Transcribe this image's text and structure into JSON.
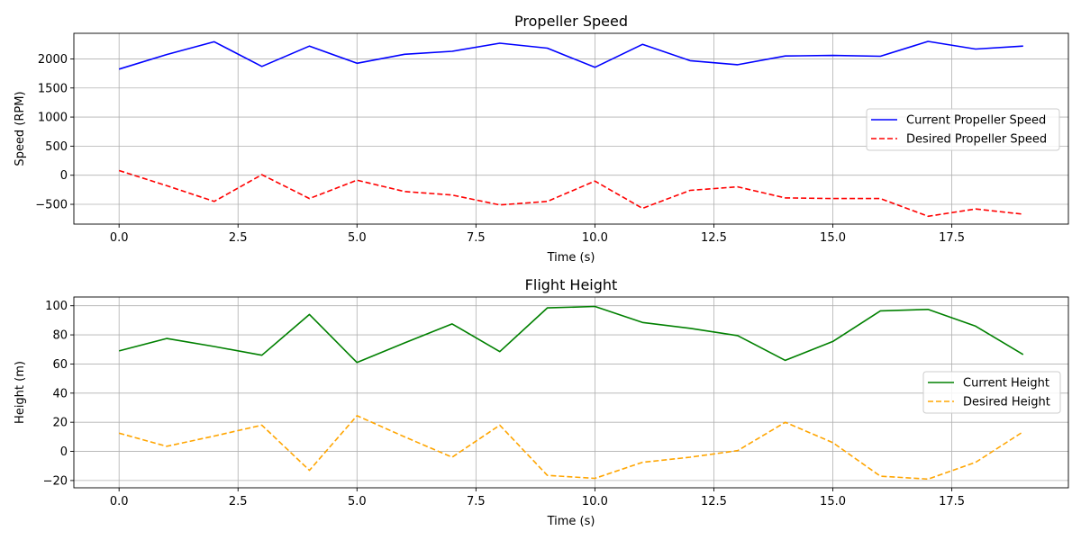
{
  "chart_data": [
    {
      "type": "line",
      "title": "Propeller Speed",
      "xlabel": "Time (s)",
      "ylabel": "Speed (RPM)",
      "xlim": [
        -0.95,
        19.95
      ],
      "ylim": [
        -840,
        2440
      ],
      "xticks": [
        0,
        2.5,
        5,
        7.5,
        10,
        12.5,
        15,
        17.5
      ],
      "xtick_labels": [
        "0.0",
        "2.5",
        "5.0",
        "7.5",
        "10.0",
        "12.5",
        "15.0",
        "17.5"
      ],
      "yticks": [
        -500,
        0,
        500,
        1000,
        1500,
        2000
      ],
      "ytick_labels": [
        "−500",
        "0",
        "500",
        "1000",
        "1500",
        "2000"
      ],
      "grid": true,
      "legend_position": "center-right",
      "x": [
        0,
        1,
        2,
        3,
        4,
        5,
        6,
        7,
        8,
        9,
        10,
        11,
        12,
        13,
        14,
        15,
        16,
        17,
        18,
        19
      ],
      "series": [
        {
          "name": "Current Propeller Speed",
          "color": "#0000ff",
          "style": "solid",
          "values": [
            1825,
            2075,
            2295,
            1870,
            2220,
            1925,
            2080,
            2130,
            2270,
            2185,
            1855,
            2250,
            1970,
            1900,
            2050,
            2060,
            2045,
            2300,
            2170,
            2220
          ]
        },
        {
          "name": "Desired Propeller Speed",
          "color": "#ff0000",
          "style": "dashed",
          "values": [
            80,
            -180,
            -450,
            10,
            -400,
            -85,
            -280,
            -340,
            -510,
            -450,
            -100,
            -570,
            -260,
            -200,
            -390,
            -400,
            -400,
            -705,
            -580,
            -670
          ]
        }
      ]
    },
    {
      "type": "line",
      "title": "Flight Height",
      "xlabel": "Time (s)",
      "ylabel": "Height (m)",
      "xlim": [
        -0.95,
        19.95
      ],
      "ylim": [
        -25,
        106
      ],
      "xticks": [
        0,
        2.5,
        5,
        7.5,
        10,
        12.5,
        15,
        17.5
      ],
      "xtick_labels": [
        "0.0",
        "2.5",
        "5.0",
        "7.5",
        "10.0",
        "12.5",
        "15.0",
        "17.5"
      ],
      "yticks": [
        -20,
        0,
        20,
        40,
        60,
        80,
        100
      ],
      "ytick_labels": [
        "−20",
        "0",
        "20",
        "40",
        "60",
        "80",
        "100"
      ],
      "grid": true,
      "legend_position": "center-right",
      "x": [
        0,
        1,
        2,
        3,
        4,
        5,
        6,
        7,
        8,
        9,
        10,
        11,
        12,
        13,
        14,
        15,
        16,
        17,
        18,
        19
      ],
      "series": [
        {
          "name": "Current Height",
          "color": "#008000",
          "style": "solid",
          "values": [
            69,
            77.5,
            72,
            66,
            94,
            61,
            74.5,
            87.5,
            68.5,
            98.5,
            99.5,
            88.5,
            84.5,
            79.5,
            62.5,
            75.5,
            96.5,
            97.5,
            86,
            66.5
          ]
        },
        {
          "name": "Desired Height",
          "color": "#ffa500",
          "style": "dashed",
          "values": [
            12.5,
            3.5,
            10.5,
            18,
            -13,
            24.5,
            10,
            -4,
            18,
            -16.5,
            -18.5,
            -7.5,
            -4,
            0.5,
            20,
            6,
            -17,
            -19,
            -7.5,
            13.5
          ]
        }
      ]
    }
  ]
}
